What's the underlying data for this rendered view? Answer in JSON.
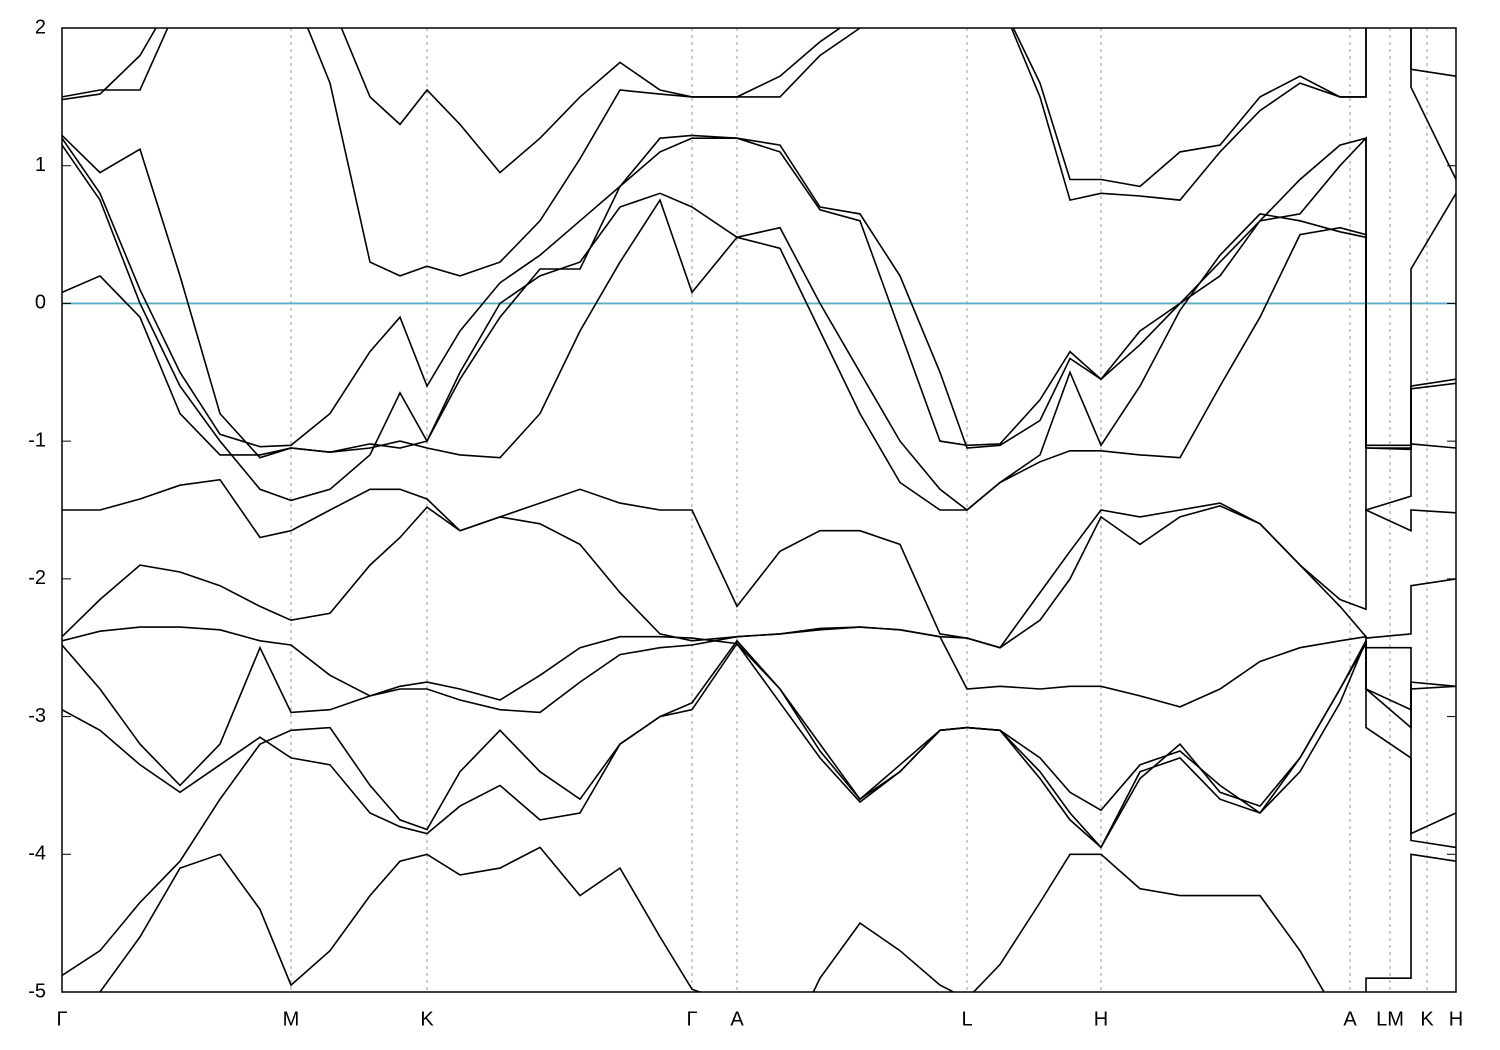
{
  "chart_data": {
    "type": "line",
    "x": [
      0,
      38,
      78,
      118,
      158,
      198,
      229,
      268,
      308,
      338,
      365,
      398,
      438,
      478,
      518,
      558,
      598,
      630,
      675,
      718,
      758,
      798,
      838,
      878,
      905,
      938,
      978,
      1008,
      1039,
      1078,
      1118,
      1158,
      1198,
      1238,
      1278,
      1304,
      1304,
      1349,
      1349,
      1394
    ],
    "xlim": [
      0,
      1394
    ],
    "xticks": [
      {
        "value": 0,
        "label": "Γ"
      },
      {
        "value": 229,
        "label": "M"
      },
      {
        "value": 365,
        "label": "K"
      },
      {
        "value": 630,
        "label": "Γ"
      },
      {
        "value": 675,
        "label": "A"
      },
      {
        "value": 905,
        "label": "L"
      },
      {
        "value": 1039,
        "label": "H"
      },
      {
        "value": 1288,
        "label": "A"
      },
      {
        "value": 1328,
        "label": "LM"
      },
      {
        "value": 1365,
        "label": "K"
      },
      {
        "value": 1394,
        "label": "H"
      }
    ],
    "ylim": [
      -5,
      2
    ],
    "yticks": [
      2,
      1,
      0,
      -1,
      -2,
      -3,
      -4,
      -5
    ],
    "xgrid": true,
    "color": "#000000",
    "reference_lines": [
      {
        "y": 0,
        "color": "#5aaec6"
      }
    ],
    "series": [
      {
        "values": [
          1.2,
          0.8,
          0.1,
          -0.5,
          -0.95,
          -1.04,
          -1.03,
          -0.8,
          -0.35,
          -0.1,
          -0.6,
          -0.2,
          0.15,
          0.35,
          0.6,
          0.85,
          1.1,
          1.2,
          1.2,
          1.15,
          0.7,
          0.65,
          0.2,
          -0.5,
          -1.05,
          -1.03,
          -0.85,
          -0.4,
          -0.55,
          -0.3,
          0.0,
          0.2,
          0.6,
          0.65,
          1.0,
          1.2,
          -1.03,
          -1.03,
          -0.6,
          -0.55
        ]
      },
      {
        "values": [
          1.15,
          0.75,
          0.0,
          -0.6,
          -1.0,
          -1.35,
          -1.43,
          -1.35,
          -1.1,
          -0.65,
          -1.0,
          -0.5,
          0.0,
          0.2,
          0.3,
          0.7,
          0.8,
          0.7,
          0.48,
          0.55,
          0.0,
          -0.5,
          -1.0,
          -1.35,
          -1.5,
          -1.3,
          -1.1,
          -0.5,
          -1.03,
          -0.6,
          -0.05,
          0.35,
          0.65,
          0.6,
          0.52,
          0.48,
          -1.5,
          -1.4,
          0.25,
          0.8
        ]
      },
      {
        "values": [
          0.08,
          0.2,
          -0.1,
          -0.8,
          -1.1,
          -1.1,
          -1.05,
          -1.08,
          -1.05,
          -1.0,
          -1.05,
          -1.1,
          -1.12,
          -0.8,
          -0.2,
          0.3,
          0.75,
          0.08,
          0.48,
          0.4,
          -0.2,
          -0.8,
          -1.3,
          -1.5,
          -1.5,
          -1.3,
          -1.15,
          -1.07,
          -1.07,
          -1.1,
          -1.12,
          -0.6,
          -0.1,
          0.5,
          0.55,
          0.5,
          -1.05,
          -1.05,
          -0.62,
          -0.58
        ]
      },
      {
        "values": [
          -1.5,
          -1.5,
          -1.42,
          -1.32,
          -1.28,
          -1.7,
          -1.65,
          -1.5,
          -1.35,
          -1.35,
          -1.42,
          -1.65,
          -1.55,
          -1.45,
          -1.35,
          -1.45,
          -1.5,
          -1.5,
          -2.2,
          -1.8,
          -1.65,
          -1.65,
          -1.75,
          -2.4,
          -2.43,
          -2.5,
          -2.1,
          -1.8,
          -1.5,
          -1.55,
          -1.5,
          -1.45,
          -1.6,
          -1.9,
          -2.15,
          -2.22,
          -1.5,
          -1.65,
          -1.5,
          -1.52
        ]
      },
      {
        "values": [
          -2.42,
          -2.15,
          -1.9,
          -1.95,
          -2.05,
          -2.2,
          -2.3,
          -2.25,
          -1.9,
          -1.7,
          -1.48,
          -1.65,
          -1.55,
          -1.6,
          -1.75,
          -2.1,
          -2.4,
          -2.45,
          -2.42,
          -2.4,
          -2.37,
          -2.35,
          -2.37,
          -2.42,
          -2.43,
          -2.5,
          -2.3,
          -2.0,
          -1.55,
          -1.75,
          -1.55,
          -1.47,
          -1.6,
          -1.9,
          -2.2,
          -2.42,
          -2.43,
          -2.4,
          -2.05,
          -2.0
        ]
      },
      {
        "values": [
          -2.45,
          -2.38,
          -2.35,
          -2.35,
          -2.37,
          -2.45,
          -2.48,
          -2.7,
          -2.85,
          -2.78,
          -2.75,
          -2.8,
          -2.88,
          -2.7,
          -2.5,
          -2.42,
          -2.42,
          -2.43,
          -2.47,
          -2.8,
          -3.2,
          -3.6,
          -3.4,
          -3.1,
          -3.08,
          -3.1,
          -3.3,
          -3.55,
          -3.68,
          -3.35,
          -3.25,
          -3.5,
          -3.7,
          -3.3,
          -2.8,
          -2.47,
          -2.8,
          -2.95,
          -2.75,
          -2.78
        ]
      },
      {
        "values": [
          -2.48,
          -2.8,
          -3.2,
          -3.5,
          -3.2,
          -2.5,
          -2.97,
          -2.95,
          -2.85,
          -2.8,
          -2.8,
          -2.88,
          -2.95,
          -2.97,
          -2.75,
          -2.55,
          -2.5,
          -2.48,
          -2.42,
          -2.4,
          -2.36,
          -2.35,
          -2.37,
          -2.42,
          -2.8,
          -2.78,
          -2.8,
          -2.78,
          -2.78,
          -2.85,
          -2.93,
          -2.8,
          -2.6,
          -2.5,
          -2.45,
          -2.42,
          -2.8,
          -3.08,
          -2.8,
          -2.78
        ]
      },
      {
        "values": [
          -2.95,
          -3.1,
          -3.35,
          -3.55,
          -3.35,
          -3.15,
          -3.3,
          -3.35,
          -3.7,
          -3.8,
          -3.85,
          -3.65,
          -3.5,
          -3.75,
          -3.7,
          -3.2,
          -3.0,
          -2.9,
          -2.45,
          -2.8,
          -3.25,
          -3.6,
          -3.35,
          -3.1,
          -3.08,
          -3.1,
          -3.4,
          -3.7,
          -3.95,
          -3.4,
          -3.3,
          -3.6,
          -3.7,
          -3.4,
          -2.9,
          -2.45,
          -3.08,
          -3.3,
          -3.85,
          -3.7
        ]
      },
      {
        "values": [
          -4.88,
          -4.7,
          -4.35,
          -4.05,
          -3.6,
          -3.2,
          -3.1,
          -3.08,
          -3.5,
          -3.75,
          -3.82,
          -3.4,
          -3.1,
          -3.4,
          -3.6,
          -3.2,
          -3.0,
          -2.95,
          -2.47,
          -2.9,
          -3.3,
          -3.62,
          -3.4,
          -3.1,
          -3.08,
          -3.1,
          -3.45,
          -3.75,
          -3.95,
          -3.45,
          -3.2,
          -3.55,
          -3.65,
          -3.3,
          -2.8,
          -2.45,
          -2.5,
          -2.5,
          -3.9,
          -3.95
        ]
      },
      {
        "values": [
          -5.3,
          -5.0,
          -4.6,
          -4.1,
          -4.0,
          -4.4,
          -4.95,
          -4.7,
          -4.3,
          -4.05,
          -4.0,
          -4.15,
          -4.1,
          -3.95,
          -4.3,
          -4.1,
          -4.6,
          -4.98,
          -5.1,
          -5.5,
          -4.9,
          -4.5,
          -4.7,
          -4.95,
          -5.05,
          -4.8,
          -4.35,
          -4.0,
          -4.0,
          -4.25,
          -4.3,
          -4.3,
          -4.3,
          -4.7,
          -5.2,
          -5.5,
          -4.9,
          -4.9,
          -4.0,
          -4.05
        ]
      },
      {
        "values": [
          1.5,
          1.55,
          1.55,
          2.2,
          2.4,
          2.4,
          2.3,
          1.6,
          0.3,
          0.2,
          0.27,
          0.2,
          0.3,
          0.6,
          1.05,
          1.55,
          1.52,
          1.5,
          1.5,
          1.65,
          1.9,
          2.1,
          2.3,
          2.3,
          2.3,
          2.2,
          1.5,
          0.75,
          0.8,
          0.78,
          0.75,
          1.1,
          1.4,
          1.6,
          1.5,
          1.5,
          2.3,
          2.3,
          1.57,
          0.9
        ]
      },
      {
        "values": [
          1.48,
          1.52,
          1.8,
          2.3,
          2.4,
          2.4,
          2.3,
          2.2,
          1.5,
          1.3,
          1.55,
          1.3,
          0.95,
          1.2,
          1.5,
          1.75,
          1.55,
          1.5,
          1.5,
          1.5,
          1.8,
          2.0,
          2.2,
          2.3,
          2.3,
          2.2,
          1.6,
          0.9,
          0.9,
          0.85,
          1.1,
          1.15,
          1.5,
          1.65,
          1.5,
          1.5,
          2.3,
          2.3,
          1.7,
          1.65
        ]
      },
      {
        "values": [
          1.22,
          0.95,
          1.12,
          0.2,
          -0.8,
          -1.12,
          -1.05,
          -1.08,
          -1.02,
          -1.05,
          -1.0,
          -0.55,
          -0.1,
          0.25,
          0.25,
          0.85,
          1.2,
          1.22,
          1.2,
          1.1,
          0.68,
          0.6,
          -0.2,
          -1.0,
          -1.03,
          -1.02,
          -0.7,
          -0.35,
          -0.55,
          -0.2,
          0.0,
          0.3,
          0.6,
          0.9,
          1.15,
          1.2,
          -1.05,
          -1.06,
          -1.02,
          -1.05
        ]
      }
    ]
  }
}
